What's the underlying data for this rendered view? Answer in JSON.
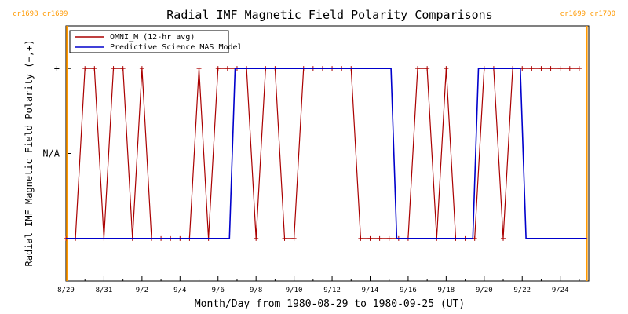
{
  "chart_data": {
    "type": "line",
    "title": "Radial IMF Magnetic Field Polarity Comparisons",
    "xlabel": "Month/Day from 1980-08-29 to 1980-09-25 (UT)",
    "ylabel": "Radial IMF Magnetic Field Polarity (−,+)",
    "x_unit": "days since 1980-08-29 00:00 UT",
    "xlim": [
      0,
      27.5
    ],
    "ylim": [
      -1.5,
      1.5
    ],
    "x_ticks": [
      {
        "x": 0,
        "label": "8/29"
      },
      {
        "x": 2,
        "label": "8/31"
      },
      {
        "x": 4,
        "label": "9/2"
      },
      {
        "x": 6,
        "label": "9/4"
      },
      {
        "x": 8,
        "label": "9/6"
      },
      {
        "x": 10,
        "label": "9/8"
      },
      {
        "x": 12,
        "label": "9/10"
      },
      {
        "x": 14,
        "label": "9/12"
      },
      {
        "x": 16,
        "label": "9/14"
      },
      {
        "x": 18,
        "label": "9/16"
      },
      {
        "x": 20,
        "label": "9/18"
      },
      {
        "x": 22,
        "label": "9/20"
      },
      {
        "x": 24,
        "label": "9/22"
      },
      {
        "x": 26,
        "label": "9/24"
      }
    ],
    "y_ticks": [
      {
        "y": 1,
        "label": "+"
      },
      {
        "y": 0,
        "label": "N/A"
      },
      {
        "y": -1,
        "label": "–"
      }
    ],
    "carrington_markers": [
      {
        "x": 0.05,
        "label": "cr1698 cr1699",
        "align": "start"
      },
      {
        "x": 27.4,
        "label": "cr1699 cr1700",
        "align": "end"
      }
    ],
    "legend_position": "top-left",
    "series": [
      {
        "name": "OMNI_M (12-hr avg)",
        "color": "#aa0000",
        "markers": true,
        "x": [
          0,
          0.5,
          1,
          1.5,
          2,
          2.5,
          3,
          3.5,
          4,
          4.5,
          5,
          5.5,
          6,
          6.5,
          7,
          7.5,
          8,
          8.5,
          9,
          9.5,
          10,
          10.5,
          11,
          11.5,
          12,
          12.5,
          13,
          13.5,
          14,
          14.5,
          15,
          15.5,
          16,
          16.5,
          17,
          17.5,
          18,
          18.5,
          19,
          19.5,
          20,
          20.5,
          21,
          21.5,
          22,
          22.5,
          23,
          23.5,
          24,
          24.5,
          25,
          25.5,
          26,
          26.5,
          27
        ],
        "y": [
          -1,
          -1,
          1,
          1,
          -1,
          1,
          1,
          -1,
          1,
          -1,
          -1,
          -1,
          -1,
          -1,
          1,
          -1,
          1,
          1,
          1,
          1,
          -1,
          1,
          1,
          -1,
          -1,
          1,
          1,
          1,
          1,
          1,
          1,
          -1,
          -1,
          -1,
          -1,
          -1,
          -1,
          1,
          1,
          -1,
          1,
          -1,
          -1,
          -1,
          1,
          1,
          -1,
          1,
          1,
          1,
          1,
          1,
          1,
          1,
          1
        ]
      },
      {
        "name": "Predictive Science MAS Model",
        "color": "#0000cc",
        "markers": false,
        "x": [
          0,
          8.6,
          8.9,
          17.1,
          17.4,
          21.4,
          21.7,
          23.9,
          24.2,
          27.4
        ],
        "y": [
          -1,
          -1,
          1,
          1,
          -1,
          -1,
          1,
          1,
          -1,
          -1
        ]
      }
    ]
  }
}
